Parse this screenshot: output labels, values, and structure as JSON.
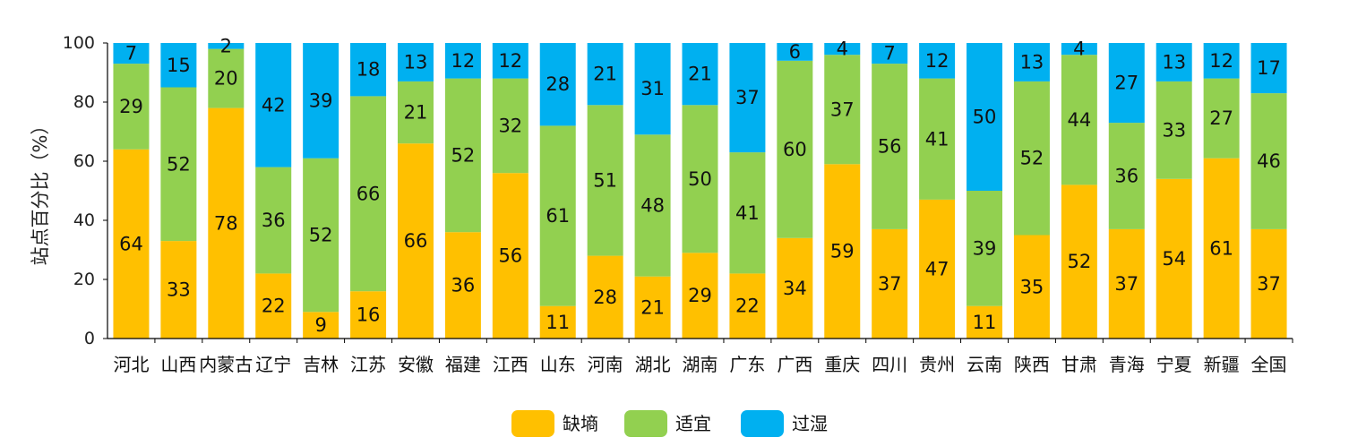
{
  "chart_data": {
    "type": "bar",
    "stacked": true,
    "ylabel": "站点百分比（%）",
    "ylim": [
      0,
      100
    ],
    "yticks": [
      0,
      20,
      40,
      60,
      80,
      100
    ],
    "grid": false,
    "legend_position": "bottom-center",
    "categories": [
      "河北",
      "山西",
      "内蒙古",
      "辽宁",
      "吉林",
      "江苏",
      "安徽",
      "福建",
      "江西",
      "山东",
      "河南",
      "湖北",
      "湖南",
      "广东",
      "广西",
      "重庆",
      "四川",
      "贵州",
      "云南",
      "陕西",
      "甘肃",
      "青海",
      "宁夏",
      "新疆",
      "全国"
    ],
    "series": [
      {
        "name": "缺墒",
        "color": "#FFC000",
        "values": [
          64,
          33,
          78,
          22,
          9,
          16,
          66,
          36,
          56,
          11,
          28,
          21,
          29,
          22,
          34,
          59,
          37,
          47,
          11,
          35,
          52,
          37,
          54,
          61,
          37
        ]
      },
      {
        "name": "适宜",
        "color": "#92D050",
        "values": [
          29,
          52,
          20,
          36,
          52,
          66,
          21,
          52,
          32,
          61,
          51,
          48,
          50,
          41,
          60,
          37,
          56,
          41,
          39,
          52,
          44,
          36,
          33,
          27,
          46
        ]
      },
      {
        "name": "过湿",
        "color": "#00B0F0",
        "values": [
          7,
          15,
          2,
          42,
          39,
          18,
          13,
          12,
          12,
          28,
          21,
          31,
          21,
          37,
          6,
          4,
          7,
          12,
          50,
          13,
          4,
          27,
          13,
          12,
          17
        ]
      }
    ]
  }
}
